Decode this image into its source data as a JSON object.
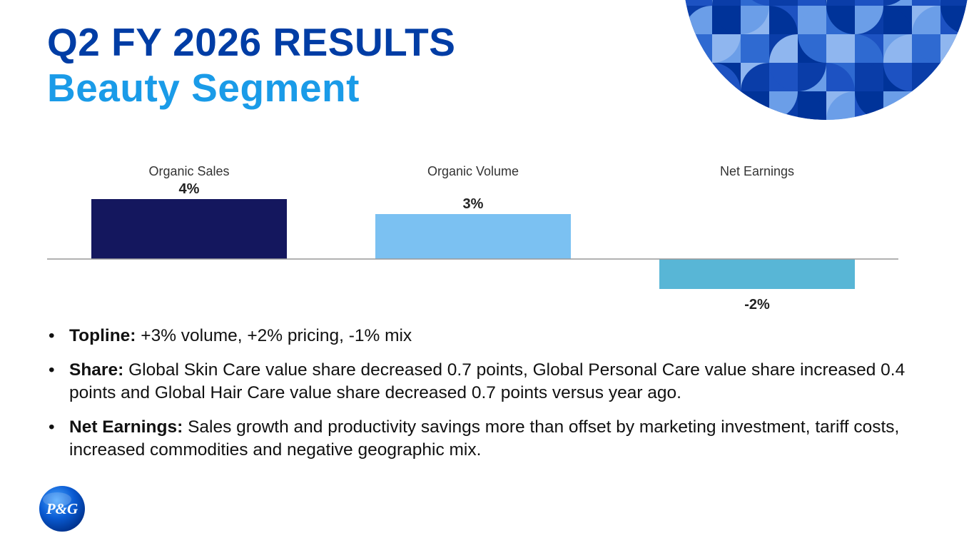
{
  "slide": {
    "title": "Q2 FY 2026 RESULTS",
    "subtitle": "Beauty Segment"
  },
  "colors": {
    "title": "#003da5",
    "subtitle": "#1a9be8",
    "bar_organic_sales": "#14175e",
    "bar_organic_volume": "#7bc1f2",
    "bar_net_earnings": "#58b6d6",
    "baseline": "#999999"
  },
  "chart_data": {
    "type": "bar",
    "categories": [
      "Organic Sales",
      "Organic Volume",
      "Net Earnings"
    ],
    "values": [
      4,
      3,
      -2
    ],
    "value_labels": [
      "4%",
      "3%",
      "-2%"
    ],
    "bar_colors": [
      "#14175e",
      "#7bc1f2",
      "#58b6d6"
    ],
    "ylim": [
      -3,
      5
    ],
    "grid": false,
    "axes_visible": false
  },
  "bullets": [
    {
      "term": "Topline:",
      "text": " +3% volume, +2% pricing, -1% mix"
    },
    {
      "term": "Share:",
      "text": " Global Skin Care value share decreased 0.7 points, Global Personal Care value share increased 0.4 points and Global Hair Care value share decreased 0.7 points versus year ago."
    },
    {
      "term": "Net Earnings:",
      "text": " Sales growth and productivity savings more than offset by marketing investment, tariff costs, increased commodities and negative geographic mix."
    }
  ],
  "logo": {
    "text": "P&G",
    "icon": "pg-logo-icon"
  },
  "decoration": {
    "icon": "patterned-circle-icon"
  }
}
